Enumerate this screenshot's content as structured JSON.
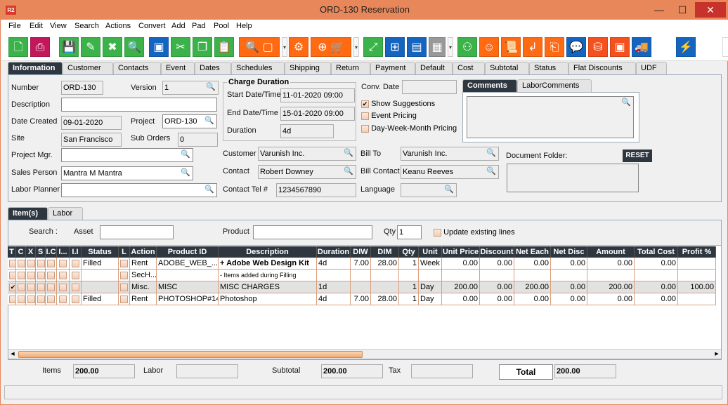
{
  "window": {
    "title": "ORD-130 Reservation",
    "logo": "R2",
    "minimize": "—",
    "maximize": "☐",
    "close": "✕"
  },
  "menu": [
    "File",
    "Edit",
    "View",
    "Search",
    "Actions",
    "Convert",
    "Add",
    "Pad",
    "Pool",
    "Help"
  ],
  "toolbar": [
    {
      "icon": "new-document-icon",
      "g": "🗋",
      "c": "#3cb34a"
    },
    {
      "icon": "print-icon",
      "g": "⎙",
      "c": "#c2185b"
    },
    {
      "icon": "save-icon",
      "g": "💾",
      "c": "#3cb34a"
    },
    {
      "icon": "edit-icon",
      "g": "✎",
      "c": "#3cb34a"
    },
    {
      "icon": "delete-icon",
      "g": "✖",
      "c": "#3cb34a"
    },
    {
      "icon": "search-icon",
      "g": "🔍",
      "c": "#3cb34a"
    },
    {
      "icon": "open-icon",
      "g": "▣",
      "c": "#1565c0"
    },
    {
      "icon": "cut-icon",
      "g": "✂",
      "c": "#3cb34a"
    },
    {
      "icon": "copy-icon",
      "g": "❐",
      "c": "#3cb34a"
    },
    {
      "icon": "paste-icon",
      "g": "📋",
      "c": "#3cb34a"
    },
    {
      "icon": "search-product-icon",
      "g": "🔍 ▢",
      "c": "#ff6a13",
      "w": 58
    },
    {
      "icon": "dropdown-icon",
      "dd": true
    },
    {
      "icon": "gears-icon",
      "g": "⚙",
      "c": "#ff6a13"
    },
    {
      "icon": "add-to-cart-icon",
      "g": "⊕ 🛒",
      "c": "#ff6a13",
      "w": 58
    },
    {
      "icon": "dropdown-icon",
      "dd": true
    },
    {
      "icon": "expand-icon",
      "g": "⤢",
      "c": "#3cb34a"
    },
    {
      "icon": "hierarchy-icon",
      "g": "⊞",
      "c": "#1565c0"
    },
    {
      "icon": "message-icon",
      "g": "▤",
      "c": "#1565c0"
    },
    {
      "icon": "calendar-icon",
      "g": "▦",
      "c": "#999",
      "w": 24
    },
    {
      "icon": "dropdown-icon",
      "dd": true
    },
    {
      "icon": "tree-icon",
      "g": "⚇",
      "c": "#3cb34a"
    },
    {
      "icon": "smiley-icon",
      "g": "☺",
      "c": "#ff6a13"
    },
    {
      "icon": "scroll-icon",
      "g": "📜",
      "c": "#ff6a13"
    },
    {
      "icon": "return-icon",
      "g": "↲",
      "c": "#ff6a13"
    },
    {
      "icon": "box-return-icon",
      "g": "⎗",
      "c": "#ff6a13"
    },
    {
      "icon": "chat-zero-icon",
      "g": "💬",
      "c": "#1565c0"
    },
    {
      "icon": "coins-icon",
      "g": "⛁",
      "c": "#f4511e"
    },
    {
      "icon": "safe-icon",
      "g": "▣",
      "c": "#f4511e"
    },
    {
      "icon": "delivery-truck-icon",
      "g": "🚚",
      "c": "#1565c0"
    },
    {
      "icon": "lightning-icon",
      "g": "⚡",
      "c": "#1565c0",
      "gap": 32
    },
    {
      "icon": "exit-icon",
      "g": "⇥",
      "c": "#fff",
      "fg": "#555",
      "gap": 35
    }
  ],
  "tabs": [
    "Information",
    "Customer",
    "Contacts",
    "Event",
    "Dates",
    "Schedules",
    "Shipping",
    "Return",
    "Payment",
    "Default",
    "Cost",
    "Subtotal",
    "Status",
    "Flat Discounts",
    "UDF"
  ],
  "form": {
    "number_label": "Number",
    "number": "ORD-130",
    "version_label": "Version",
    "version": "1",
    "description_label": "Description",
    "description": "",
    "date_created_label": "Date Created",
    "date_created": "09-01-2020",
    "project_label": "Project",
    "project": "ORD-130",
    "site_label": "Site",
    "site": "San Francisco",
    "sub_orders_label": "Sub Orders",
    "sub_orders": "0",
    "project_mgr_label": "Project Mgr.",
    "project_mgr": "",
    "sales_person_label": "Sales Person",
    "sales_person": "Mantra M Mantra",
    "labor_planner_label": "Labor Planner",
    "labor_planner": "",
    "charge_duration_title": "Charge Duration",
    "start_label": "Start Date/Time",
    "start": "11-01-2020 09:00",
    "end_label": "End Date/Time",
    "end": "15-01-2020 09:00",
    "duration_label": "Duration",
    "duration": "4d",
    "conv_date_label": "Conv. Date",
    "conv_date": "",
    "show_suggestions": "Show Suggestions",
    "event_pricing": "Event Pricing",
    "dwm_pricing": "Day-Week-Month Pricing",
    "customer_label": "Customer",
    "customer": "Varunish Inc.",
    "contact_label": "Contact",
    "contact": "Robert Downey",
    "contact_tel_label": "Contact Tel #",
    "contact_tel": "1234567890",
    "bill_to_label": "Bill To",
    "bill_to": "Varunish Inc.",
    "bill_contact_label": "Bill Contact",
    "bill_contact": "Keanu Reeves",
    "language_label": "Language",
    "language": "",
    "comments_tab": "Comments",
    "labor_comments_tab": "LaborComments",
    "document_folder_label": "Document Folder:",
    "reset": "RESET"
  },
  "items": {
    "tab_items": "Item(s)",
    "tab_labor": "Labor",
    "search_label": "Search :",
    "asset_label": "Asset",
    "asset": "",
    "product_label": "Product",
    "product": "",
    "qty_label": "Qty",
    "qty": "1",
    "update_label": "Update existing lines"
  },
  "grid": {
    "columns": [
      "T",
      "C",
      "X",
      "S",
      "I.C",
      "I...",
      "I.I",
      "Status",
      "L",
      "Action",
      "Product ID",
      "Description",
      "Duration",
      "DIW",
      "DIM",
      "Qty",
      "Unit",
      "Unit Price",
      "Discount",
      "Net Each",
      "Net Disc",
      "Amount",
      "Total Cost",
      "Profit %"
    ],
    "rows": [
      {
        "checked": false,
        "status": "Filled",
        "action": "Rent",
        "product_id": "ADOBE_WEB_...",
        "description": "+ Adobe Web Design Kit",
        "bold": true,
        "duration": "4d",
        "diw": "7.00",
        "dim": "28.00",
        "qty": "1",
        "unit": "Week",
        "unit_price": "0.00",
        "discount": "0.00",
        "net_each": "0.00",
        "net_disc": "0.00",
        "amount": "0.00",
        "total_cost": "0.00",
        "profit": ""
      },
      {
        "checked": false,
        "status": "",
        "action": "SecH...",
        "product_id": "",
        "description": "- Items added during Filling",
        "small": true,
        "duration": "",
        "diw": "",
        "dim": "",
        "qty": "",
        "unit": "",
        "unit_price": "",
        "discount": "",
        "net_each": "",
        "net_disc": "",
        "amount": "",
        "total_cost": "",
        "profit": ""
      },
      {
        "checked": true,
        "status": "",
        "action": "Misc.",
        "product_id": "MISC",
        "description": "MISC CHARGES",
        "selected": true,
        "duration": "1d",
        "diw": "",
        "dim": "",
        "qty": "1",
        "unit": "Day",
        "unit_price": "200.00",
        "discount": "0.00",
        "net_each": "200.00",
        "net_disc": "0.00",
        "amount": "200.00",
        "total_cost": "0.00",
        "profit": "100.00"
      },
      {
        "checked": false,
        "status": "Filled",
        "action": "Rent",
        "product_id": "PHOTOSHOP#14",
        "description": "Photoshop",
        "duration": "4d",
        "diw": "7.00",
        "dim": "28.00",
        "qty": "1",
        "unit": "Day",
        "unit_price": "0.00",
        "discount": "0.00",
        "net_each": "0.00",
        "net_disc": "0.00",
        "amount": "0.00",
        "total_cost": "0.00",
        "profit": ""
      }
    ]
  },
  "totals": {
    "items_label": "Items",
    "items": "200.00",
    "labor_label": "Labor",
    "labor": "",
    "subtotal_label": "Subtotal",
    "subtotal": "200.00",
    "tax_label": "Tax",
    "tax": "",
    "total_label": "Total",
    "total": "200.00"
  },
  "colors": {
    "accent": "#e8875a",
    "header": "#2e3640",
    "green": "#3cb34a",
    "orange": "#ff6a13",
    "blue": "#1565c0"
  }
}
